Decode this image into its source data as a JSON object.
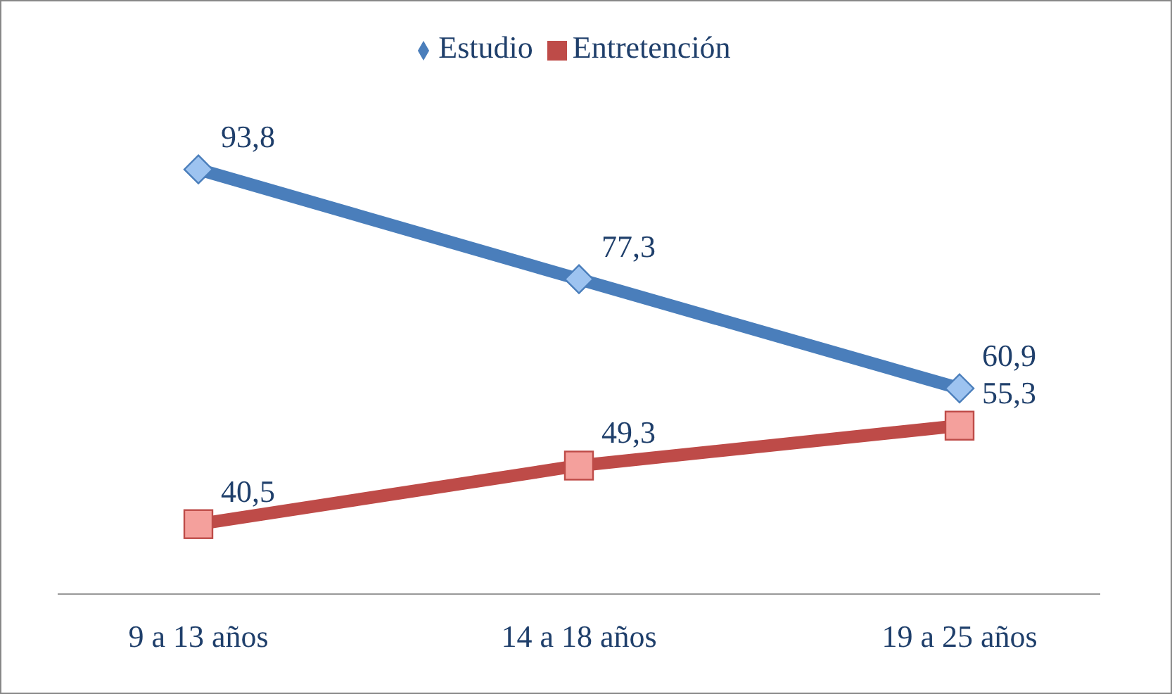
{
  "chart_data": {
    "type": "line",
    "categories": [
      "9 a 13 años",
      "14 a 18 años",
      "19 a 25 años"
    ],
    "series": [
      {
        "name": "Estudio",
        "color": "#4a7ebb",
        "marker": "diamond",
        "values": [
          93.8,
          77.3,
          60.9
        ],
        "value_labels": [
          "93,8",
          "77,3",
          "60,9"
        ]
      },
      {
        "name": "Entretención",
        "color": "#be4b48",
        "marker": "square",
        "values": [
          40.5,
          49.3,
          55.3
        ],
        "value_labels": [
          "40,5",
          "49,3",
          "55,3"
        ]
      }
    ],
    "legend": "top",
    "grid": false
  }
}
